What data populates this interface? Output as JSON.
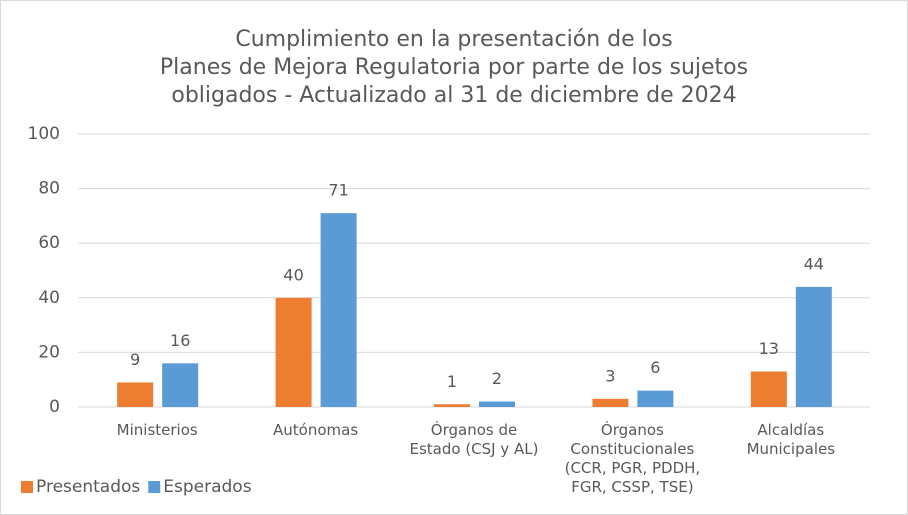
{
  "chart_data": {
    "type": "bar",
    "title": "Cumplimiento en la presentación de los\nPlanes de Mejora Regulatoria por parte de los sujetos\nobligados - Actualizado al 31 de diciembre de 2024",
    "categories": [
      "Ministerios",
      "Autónomas",
      "Órganos de\nEstado (CSJ y AL)",
      "Órganos\nConstitucionales\n(CCR, PGR, PDDH,\nFGR, CSSP, TSE)",
      "Alcaldías\nMunicipales"
    ],
    "series": [
      {
        "name": "Presentados",
        "color": "#ED7D31",
        "values": [
          9,
          40,
          1,
          3,
          13
        ]
      },
      {
        "name": "Esperados",
        "color": "#5B9BD5",
        "values": [
          16,
          71,
          2,
          6,
          44
        ]
      }
    ],
    "ylim": [
      0,
      100
    ],
    "yticks": [
      0,
      20,
      40,
      60,
      80,
      100
    ],
    "grid": true,
    "legend": "bottom-left"
  }
}
